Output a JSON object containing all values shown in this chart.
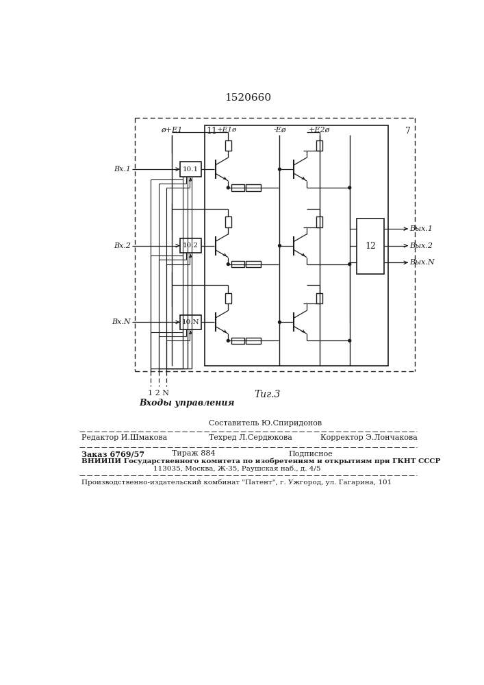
{
  "title": "1520660",
  "fig_label": "Τиг.3",
  "background_color": "#ffffff",
  "line_color": "#1a1a1a",
  "labels": {
    "vx1": "Вх.1",
    "vx2": "Вх.2",
    "vxN": "Вх.N",
    "vy1": "Вых.1",
    "vy2": "Вых.2",
    "vyN": "Вых.N",
    "e1": "ø+E1",
    "block11": "11",
    "block7": "7",
    "block12": "12",
    "block101": "10.1",
    "block102": "10.2",
    "block10N": "10.N",
    "minus_e": "-Eø",
    "plus_e1_inner": "+E1ø",
    "plus_e2": "+E2ø",
    "ctrl_inputs": "Входы управления",
    "ctrl_nums": "1 2 N"
  },
  "footer": {
    "sostavitel": "Составитель Ю.Спиридонов",
    "tehred": "Техред Л.Сердюкова",
    "redaktor": "Редактор И.Шмакова",
    "korrektor": "Корректор Э.Лончакова",
    "zakaz": "Заказ 6769/57",
    "tirazh": "Тираж 884",
    "podpisnoe": "Подписное",
    "vniiipi": "ВНИИПИ Государственного комитета по изобретениям и открытиям при ГКНТ СССР",
    "address": "113035, Москва, Ж-35, Раушская наб., д. 4/5",
    "patent": "Производственно-издательский комбинат \"Патент\", г. Ужгород, ул. Гагарина, 101"
  }
}
